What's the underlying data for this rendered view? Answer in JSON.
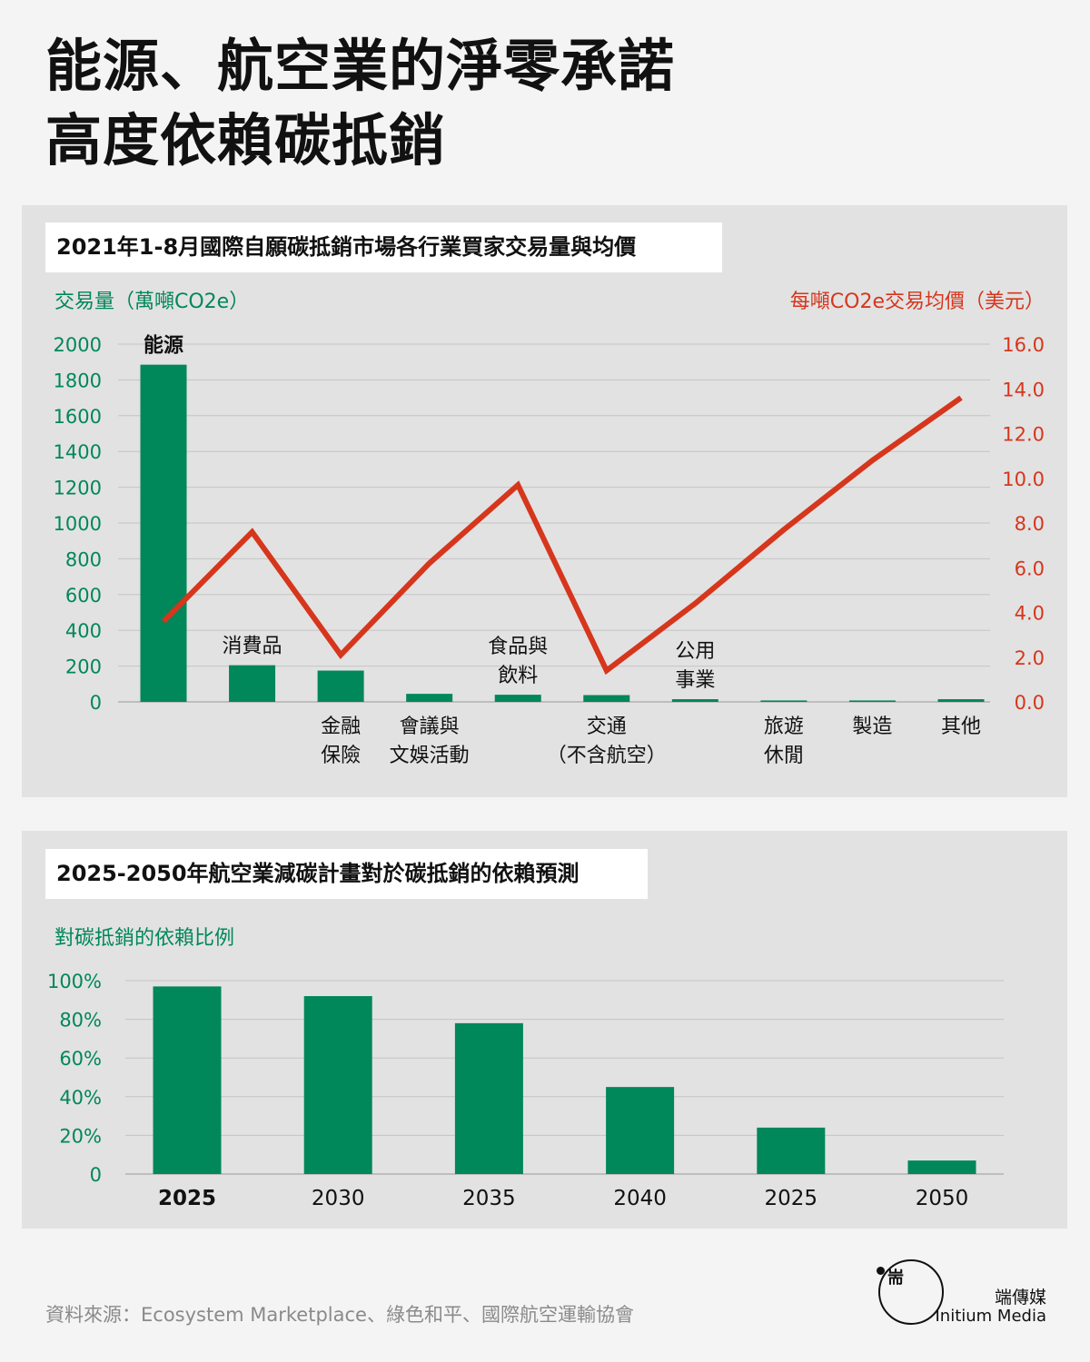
{
  "headline": [
    "能源、航空業的淨零承諾",
    "高度依賴碳抵銷"
  ],
  "colors": {
    "green": "#00875a",
    "red": "#d6361c",
    "panel": "#e2e2e2"
  },
  "chart_data": [
    {
      "type": "bar",
      "title": "2021年1-8月國際自願碳抵銷市場各行業買家交易量與均價",
      "ylabel": "交易量（萬噸CO2e）",
      "y2label": "每噸CO2e交易均價（美元）",
      "ylim": [
        0,
        2000
      ],
      "y2lim": [
        0,
        16
      ],
      "yticks": [
        "0",
        "200",
        "400",
        "600",
        "800",
        "1000",
        "1200",
        "1400",
        "1600",
        "1800",
        "2000"
      ],
      "y2ticks": [
        "0.0",
        "2.0",
        "4.0",
        "6.0",
        "8.0",
        "10.0",
        "12.0",
        "14.0",
        "16.0"
      ],
      "categories": [
        [
          "能源"
        ],
        [
          "消費品"
        ],
        [
          "金融",
          "保險"
        ],
        [
          "會議與",
          "文娛活動"
        ],
        [
          "食品與",
          "飲料"
        ],
        [
          "交通",
          "（不含航空）"
        ],
        [
          "公用",
          "事業"
        ],
        [
          "旅遊",
          "休閒"
        ],
        [
          "製造"
        ],
        [
          "其他"
        ]
      ],
      "series": [
        {
          "type": "bar",
          "axis": "left",
          "color": "#00875a",
          "values": [
            1885,
            205,
            175,
            45,
            40,
            38,
            15,
            8,
            8,
            15
          ]
        },
        {
          "type": "line",
          "axis": "right",
          "color": "#d6361c",
          "values": [
            3.6,
            7.6,
            2.1,
            6.2,
            9.7,
            1.4,
            4.4,
            7.7,
            10.8,
            13.6
          ]
        }
      ],
      "grid": true
    },
    {
      "type": "bar",
      "title": "2025-2050年航空業減碳計畫對於碳抵銷的依賴預測",
      "ylabel": "對碳抵銷的依賴比例",
      "ylim": [
        0,
        100
      ],
      "yticks": [
        "0",
        "20%",
        "40%",
        "60%",
        "80%",
        "100%"
      ],
      "categories": [
        "2025",
        "2030",
        "2035",
        "2040",
        "2025",
        "2050"
      ],
      "values": [
        97,
        92,
        78,
        45,
        24,
        7
      ],
      "color": "#00875a",
      "grid": true
    }
  ],
  "footer": {
    "source": "資料來源：Ecosystem Marketplace、綠色和平、國際航空運輸協會",
    "logo_glyph": "耑",
    "brand_cn": "端傳媒",
    "brand_en": "Initium Media"
  }
}
